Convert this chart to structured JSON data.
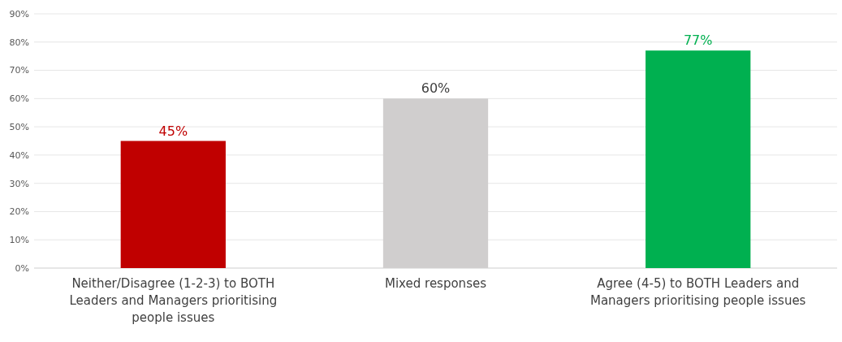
{
  "chart_data": {
    "type": "bar",
    "categories": [
      "Neither/Disagree (1-2-3) to BOTH Leaders and Managers prioritising people issues",
      "Mixed responses",
      "Agree (4-5) to BOTH Leaders and Managers prioritising people issues"
    ],
    "values": [
      45,
      60,
      77
    ],
    "colors": [
      "#c00000",
      "#d0cece",
      "#00b050"
    ],
    "value_labels": [
      "45%",
      "60%",
      "77%"
    ],
    "ylim": [
      0,
      90
    ],
    "yticks": [
      {
        "value": 0,
        "label": "0%"
      },
      {
        "value": 10,
        "label": "10%"
      },
      {
        "value": 20,
        "label": "20%"
      },
      {
        "value": 30,
        "label": "30%"
      },
      {
        "value": 40,
        "label": "40%"
      },
      {
        "value": 50,
        "label": "50%"
      },
      {
        "value": 60,
        "label": "60%"
      },
      {
        "value": 70,
        "label": "70%"
      },
      {
        "value": 80,
        "label": "80%"
      },
      {
        "value": 90,
        "label": "90%"
      }
    ],
    "grid": "y"
  }
}
